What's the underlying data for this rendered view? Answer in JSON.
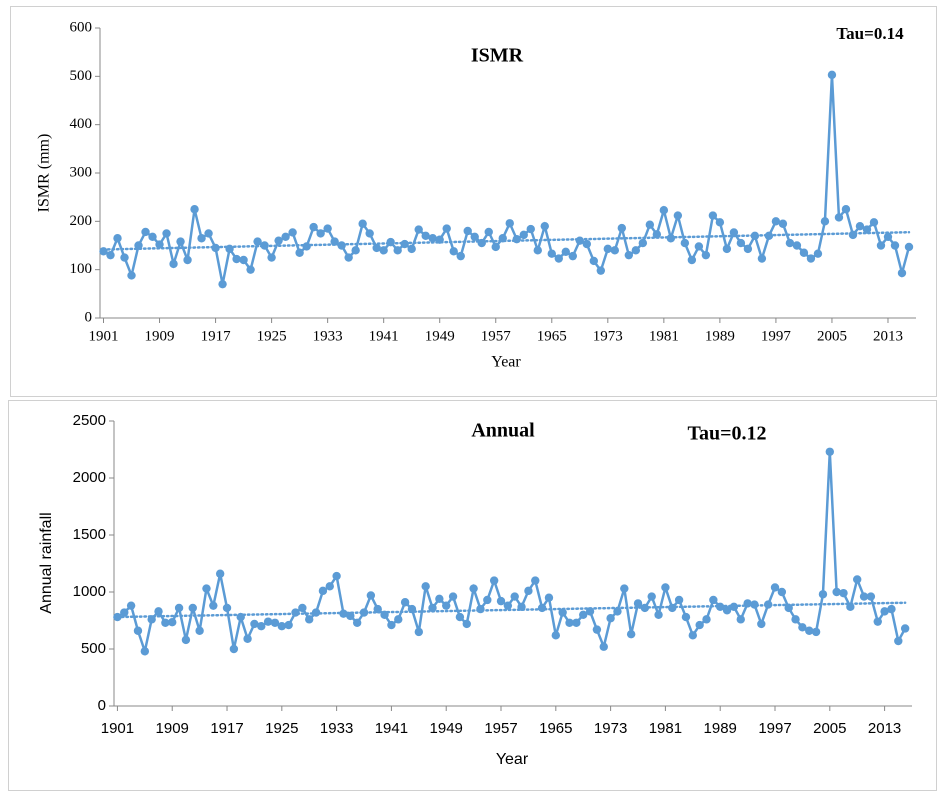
{
  "chart_data": [
    {
      "type": "line",
      "title": "ISMR",
      "annotation": "Tau=0.14",
      "x_label": "Year",
      "y_label": "ISMR (mm)",
      "x": [
        1901,
        1902,
        1903,
        1904,
        1905,
        1906,
        1907,
        1908,
        1909,
        1910,
        1911,
        1912,
        1913,
        1914,
        1915,
        1916,
        1917,
        1918,
        1919,
        1920,
        1921,
        1922,
        1923,
        1924,
        1925,
        1926,
        1927,
        1928,
        1929,
        1930,
        1931,
        1932,
        1933,
        1934,
        1935,
        1936,
        1937,
        1938,
        1939,
        1940,
        1941,
        1942,
        1943,
        1944,
        1945,
        1946,
        1947,
        1948,
        1949,
        1950,
        1951,
        1952,
        1953,
        1954,
        1955,
        1956,
        1957,
        1958,
        1959,
        1960,
        1961,
        1962,
        1963,
        1964,
        1965,
        1966,
        1967,
        1968,
        1969,
        1970,
        1971,
        1972,
        1973,
        1974,
        1975,
        1976,
        1977,
        1978,
        1979,
        1980,
        1981,
        1982,
        1983,
        1984,
        1985,
        1986,
        1987,
        1988,
        1989,
        1990,
        1991,
        1992,
        1993,
        1994,
        1995,
        1996,
        1997,
        1998,
        1999,
        2000,
        2001,
        2002,
        2003,
        2004,
        2005,
        2006,
        2007,
        2008,
        2009,
        2010,
        2011,
        2012,
        2013,
        2014,
        2015,
        2016
      ],
      "values": [
        138,
        130,
        165,
        125,
        88,
        150,
        178,
        168,
        152,
        175,
        112,
        158,
        120,
        225,
        165,
        175,
        145,
        70,
        143,
        122,
        120,
        100,
        158,
        150,
        125,
        160,
        168,
        177,
        135,
        148,
        188,
        175,
        185,
        158,
        150,
        125,
        140,
        195,
        175,
        145,
        140,
        157,
        140,
        153,
        143,
        183,
        170,
        165,
        162,
        185,
        138,
        128,
        180,
        168,
        155,
        178,
        147,
        165,
        196,
        163,
        172,
        184,
        140,
        190,
        133,
        123,
        137,
        128,
        160,
        153,
        118,
        98,
        143,
        140,
        186,
        130,
        140,
        155,
        193,
        173,
        223,
        165,
        212,
        155,
        120,
        148,
        130,
        212,
        198,
        143,
        177,
        155,
        143,
        170,
        123,
        170,
        200,
        195,
        155,
        150,
        135,
        123,
        133,
        200,
        503,
        208,
        225,
        172,
        190,
        183,
        198,
        150,
        168,
        150,
        93,
        147
      ],
      "color": "#5b9bd5",
      "trendline": "linear",
      "trendline_style": "dotted",
      "xlim": [
        1900.5,
        2017
      ],
      "xticks": [
        1901,
        1909,
        1917,
        1925,
        1933,
        1941,
        1949,
        1957,
        1965,
        1973,
        1981,
        1989,
        1997,
        2005,
        2013
      ],
      "ylim": [
        0,
        600
      ],
      "yticks": [
        0,
        100,
        200,
        300,
        400,
        500,
        600
      ],
      "grid": false
    },
    {
      "type": "line",
      "title": "Annual",
      "annotation": "Tau=0.12",
      "x_label": "Year",
      "y_label": "Annual rainfall",
      "x": [
        1901,
        1902,
        1903,
        1904,
        1905,
        1906,
        1907,
        1908,
        1909,
        1910,
        1911,
        1912,
        1913,
        1914,
        1915,
        1916,
        1917,
        1918,
        1919,
        1920,
        1921,
        1922,
        1923,
        1924,
        1925,
        1926,
        1927,
        1928,
        1929,
        1930,
        1931,
        1932,
        1933,
        1934,
        1935,
        1936,
        1937,
        1938,
        1939,
        1940,
        1941,
        1942,
        1943,
        1944,
        1945,
        1946,
        1947,
        1948,
        1949,
        1950,
        1951,
        1952,
        1953,
        1954,
        1955,
        1956,
        1957,
        1958,
        1959,
        1960,
        1961,
        1962,
        1963,
        1964,
        1965,
        1966,
        1967,
        1968,
        1969,
        1970,
        1971,
        1972,
        1973,
        1974,
        1975,
        1976,
        1977,
        1978,
        1979,
        1980,
        1981,
        1982,
        1983,
        1984,
        1985,
        1986,
        1987,
        1988,
        1989,
        1990,
        1991,
        1992,
        1993,
        1994,
        1995,
        1996,
        1997,
        1998,
        1999,
        2000,
        2001,
        2002,
        2003,
        2004,
        2005,
        2006,
        2007,
        2008,
        2009,
        2010,
        2011,
        2012,
        2013,
        2014,
        2015,
        2016
      ],
      "values": [
        780,
        820,
        880,
        660,
        480,
        760,
        830,
        730,
        735,
        860,
        580,
        860,
        660,
        1030,
        880,
        1160,
        860,
        500,
        780,
        590,
        720,
        700,
        740,
        730,
        700,
        710,
        820,
        860,
        760,
        820,
        1010,
        1050,
        1140,
        810,
        790,
        730,
        820,
        970,
        850,
        800,
        710,
        760,
        910,
        850,
        650,
        1050,
        860,
        940,
        880,
        960,
        780,
        720,
        1030,
        850,
        930,
        1100,
        920,
        880,
        960,
        870,
        1010,
        1100,
        860,
        950,
        620,
        820,
        730,
        730,
        800,
        830,
        670,
        520,
        770,
        830,
        1030,
        630,
        900,
        860,
        960,
        800,
        1040,
        860,
        930,
        780,
        620,
        710,
        760,
        930,
        870,
        840,
        870,
        760,
        900,
        890,
        720,
        890,
        1040,
        1000,
        860,
        760,
        690,
        660,
        650,
        980,
        2230,
        1000,
        990,
        870,
        1110,
        960,
        960,
        740,
        830,
        850,
        570,
        680
      ],
      "color": "#5b9bd5",
      "trendline": "linear",
      "trendline_style": "dotted",
      "xlim": [
        1900.5,
        2017
      ],
      "xticks": [
        1901,
        1909,
        1917,
        1925,
        1933,
        1941,
        1949,
        1957,
        1965,
        1973,
        1981,
        1989,
        1997,
        2005,
        2013
      ],
      "ylim": [
        0,
        2500
      ],
      "yticks": [
        0,
        500,
        1000,
        1500,
        2000,
        2500
      ],
      "grid": false
    }
  ]
}
